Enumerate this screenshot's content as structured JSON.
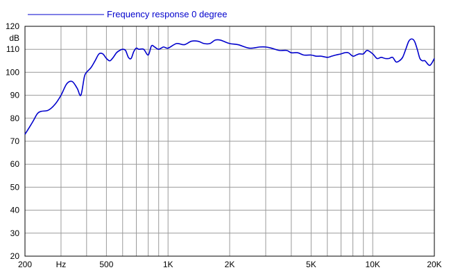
{
  "chart_data": {
    "type": "line",
    "legend": {
      "label": "Frequency response 0 degree",
      "placement": "top-left",
      "color": "#0000cc"
    },
    "y_unit": "dB",
    "ylim": [
      20,
      120
    ],
    "xlim": [
      200,
      20000
    ],
    "x_scale": "log",
    "grid": true,
    "y_ticks": [
      {
        "value": 120,
        "label": "120"
      },
      {
        "value": 110,
        "label": "110"
      },
      {
        "value": 100,
        "label": "100"
      },
      {
        "value": 90,
        "label": "90"
      },
      {
        "value": 80,
        "label": "80"
      },
      {
        "value": 70,
        "label": "70"
      },
      {
        "value": 60,
        "label": "60"
      },
      {
        "value": 50,
        "label": "50"
      },
      {
        "value": 40,
        "label": "40"
      },
      {
        "value": 30,
        "label": "30"
      },
      {
        "value": 20,
        "label": "20"
      }
    ],
    "x_ticks": [
      {
        "value": 200,
        "label": "200"
      },
      {
        "value": 300,
        "label": "Hz"
      },
      {
        "value": 500,
        "label": "500"
      },
      {
        "value": 1000,
        "label": "1K"
      },
      {
        "value": 2000,
        "label": "2K"
      },
      {
        "value": 5000,
        "label": "5K"
      },
      {
        "value": 10000,
        "label": "10K"
      },
      {
        "value": 20000,
        "label": "20K"
      }
    ],
    "x_gridlines": [
      200,
      300,
      400,
      500,
      600,
      700,
      800,
      900,
      1000,
      2000,
      3000,
      4000,
      5000,
      6000,
      7000,
      8000,
      9000,
      10000,
      20000
    ],
    "series": [
      {
        "name": "Frequency response 0 degree",
        "color": "#0000cc",
        "x": [
          200,
          210,
          220,
          230,
          240,
          260,
          280,
          300,
          320,
          340,
          360,
          375,
          390,
          400,
          420,
          440,
          460,
          480,
          500,
          520,
          540,
          560,
          580,
          600,
          620,
          640,
          660,
          680,
          700,
          720,
          760,
          800,
          830,
          860,
          900,
          950,
          1000,
          1100,
          1200,
          1300,
          1400,
          1500,
          1600,
          1700,
          1800,
          2000,
          2200,
          2500,
          2800,
          3000,
          3200,
          3500,
          3800,
          4000,
          4300,
          4600,
          5000,
          5300,
          5600,
          6000,
          6300,
          6600,
          7000,
          7300,
          7600,
          8000,
          8300,
          8600,
          9000,
          9400,
          10000,
          10500,
          11000,
          11500,
          12000,
          12500,
          13000,
          13500,
          14000,
          14500,
          15000,
          15500,
          16000,
          16500,
          17000,
          17500,
          18000,
          19000,
          20000
        ],
        "y": [
          73,
          76,
          79,
          82,
          83,
          83.5,
          86,
          90,
          95,
          96,
          93,
          90,
          98,
          100,
          102,
          105,
          108,
          108,
          106,
          105,
          106.5,
          108.5,
          109.5,
          110,
          109.5,
          106.5,
          106,
          109,
          110.5,
          110,
          110,
          107.5,
          111.5,
          111,
          110,
          111,
          110.5,
          112.5,
          112,
          113.5,
          113.5,
          112.5,
          112.5,
          114,
          114,
          112.5,
          112,
          110.5,
          111,
          111,
          110.5,
          109.5,
          109.5,
          108.5,
          108.5,
          107.5,
          107.5,
          107,
          107,
          106.5,
          107,
          107.5,
          108,
          108.5,
          108.5,
          107,
          107.5,
          108,
          108,
          109.5,
          108,
          106,
          106.5,
          106,
          106,
          106.5,
          104.5,
          105,
          106.5,
          110,
          113.5,
          114.5,
          113.5,
          110,
          106,
          105,
          105,
          103,
          106
        ]
      }
    ]
  }
}
